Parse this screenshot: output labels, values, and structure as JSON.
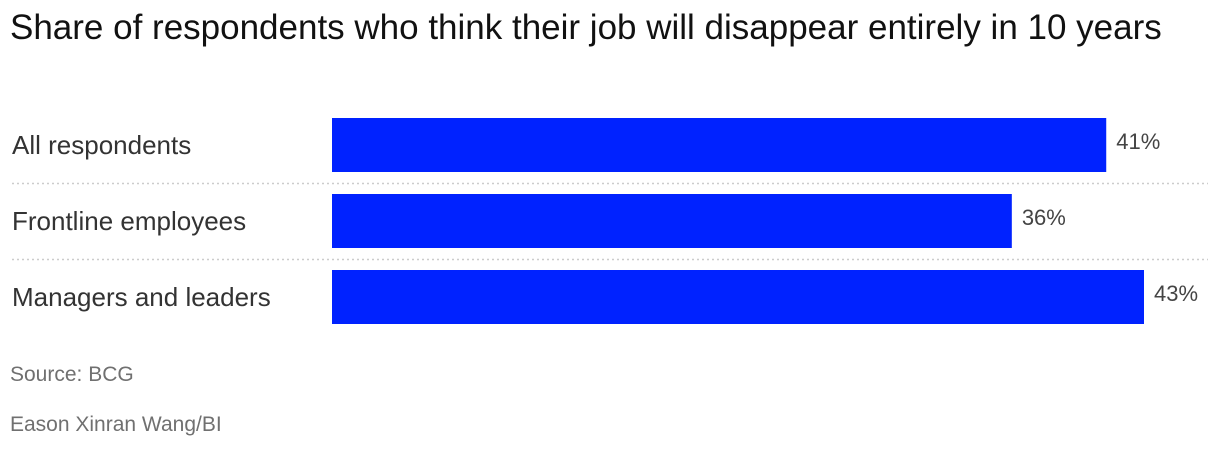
{
  "title": "Share of respondents who think their job will disappear entirely in 10 years",
  "source": "Source: BCG",
  "credit": "Eason Xinran Wang/BI",
  "colors": {
    "bar": "#0022FF",
    "divider": "#CCCCCC",
    "label": "#333333",
    "value_label": "#444444"
  },
  "chart_data": {
    "type": "bar",
    "orientation": "horizontal",
    "categories": [
      "All respondents",
      "Frontline employees",
      "Managers and leaders"
    ],
    "values": [
      41,
      36,
      43
    ],
    "value_labels": [
      "41%",
      "36%",
      "43%"
    ],
    "unit": "%",
    "xlim": [
      0,
      43
    ],
    "grid": false,
    "legend": "none"
  }
}
